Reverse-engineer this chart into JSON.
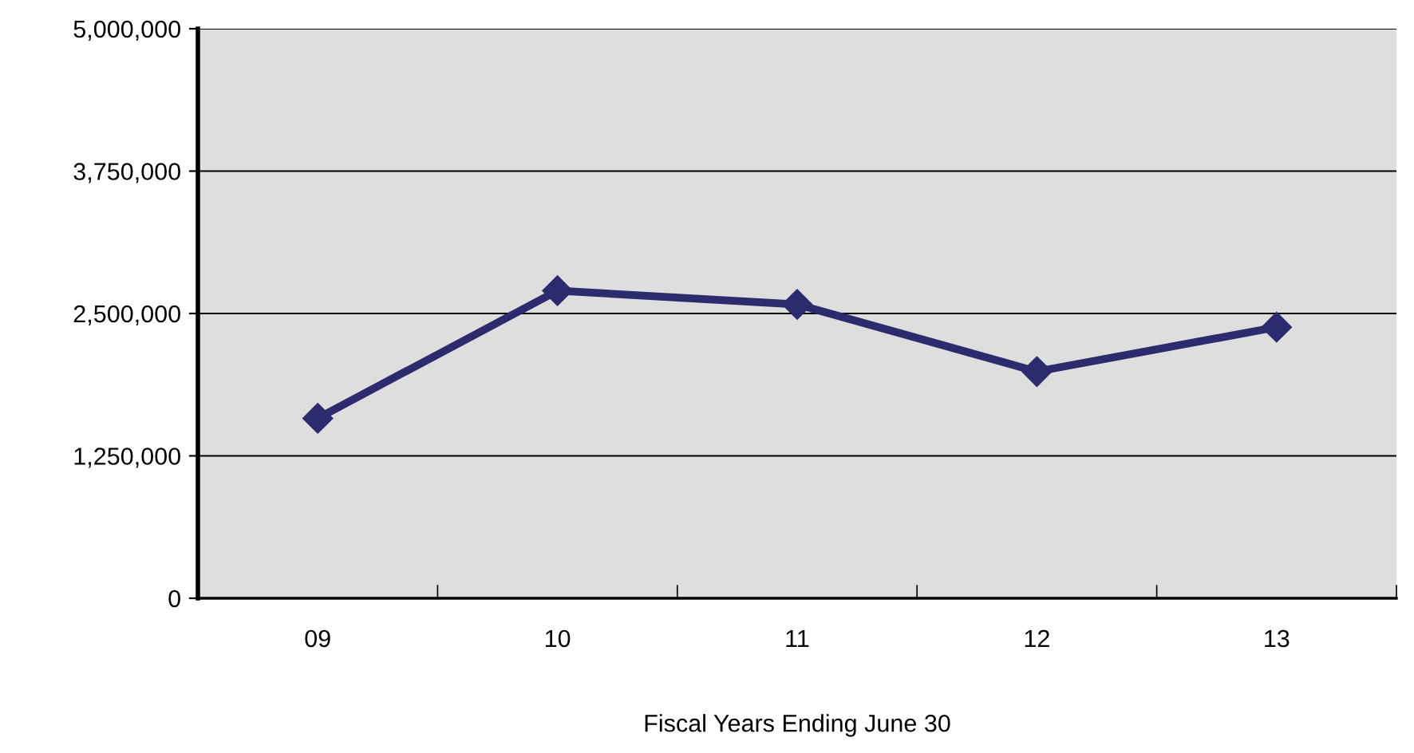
{
  "chart_data": {
    "type": "line",
    "xlabel": "Fiscal Years Ending June 30",
    "categories": [
      "09",
      "10",
      "11",
      "12",
      "13"
    ],
    "series": [
      {
        "color": "#2b2b6e",
        "values": [
          1580000,
          2700000,
          2580000,
          1990000,
          2380000
        ]
      }
    ],
    "ylim": [
      0,
      5000000
    ],
    "yticks": [
      {
        "value": 0,
        "label": "0"
      },
      {
        "value": 1250000,
        "label": "1,250,000"
      },
      {
        "value": 2500000,
        "label": "2,500,000"
      },
      {
        "value": 3750000,
        "label": "3,750,000"
      },
      {
        "value": 5000000,
        "label": "5,000,000"
      }
    ],
    "grid": "y",
    "marker": "diamond",
    "line_style": "solid",
    "legend": false
  }
}
